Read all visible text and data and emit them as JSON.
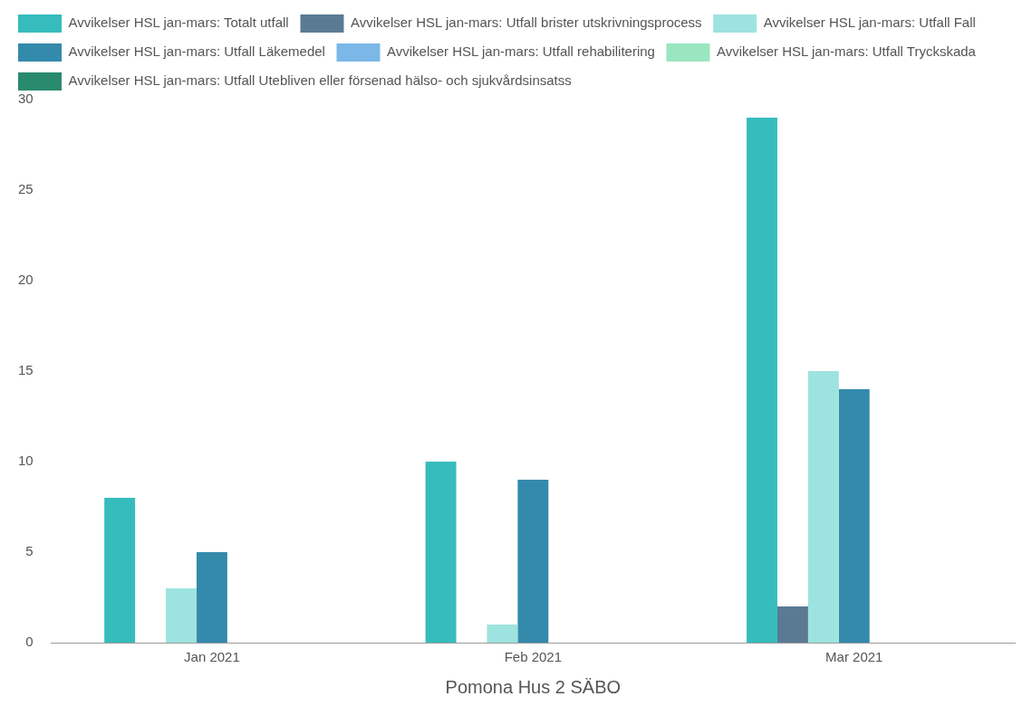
{
  "chart_data": {
    "type": "bar",
    "xlabel": "Pomona Hus 2 SÄBO",
    "categories": [
      "Jan 2021",
      "Feb 2021",
      "Mar 2021"
    ],
    "series": [
      {
        "name": "Avvikelser HSL jan-mars: Totalt utfall",
        "color": "#36bcbc",
        "values": [
          8,
          10,
          29
        ]
      },
      {
        "name": "Avvikelser HSL jan-mars: Utfall brister utskrivningsprocess",
        "color": "#5a7a94",
        "values": [
          0,
          0,
          2
        ]
      },
      {
        "name": "Avvikelser HSL jan-mars: Utfall Fall",
        "color": "#9de3df",
        "values": [
          3,
          1,
          15
        ]
      },
      {
        "name": "Avvikelser HSL jan-mars: Utfall Läkemedel",
        "color": "#348aab",
        "values": [
          5,
          9,
          14
        ]
      },
      {
        "name": "Avvikelser HSL jan-mars: Utfall rehabilitering",
        "color": "#7bb8e8",
        "values": [
          0,
          0,
          0
        ]
      },
      {
        "name": "Avvikelser HSL jan-mars: Utfall Tryckskada",
        "color": "#9ae6c0",
        "values": [
          0,
          0,
          0
        ]
      },
      {
        "name": "Avvikelser HSL jan-mars: Utfall Utebliven eller försenad hälso- och sjukvårdsinsatss",
        "color": "#2a8a6e",
        "values": [
          0,
          0,
          0
        ]
      }
    ],
    "ylim": [
      0,
      30
    ],
    "yticks": [
      0,
      5,
      10,
      15,
      20,
      25,
      30
    ],
    "grid": false,
    "legend": "top left"
  }
}
